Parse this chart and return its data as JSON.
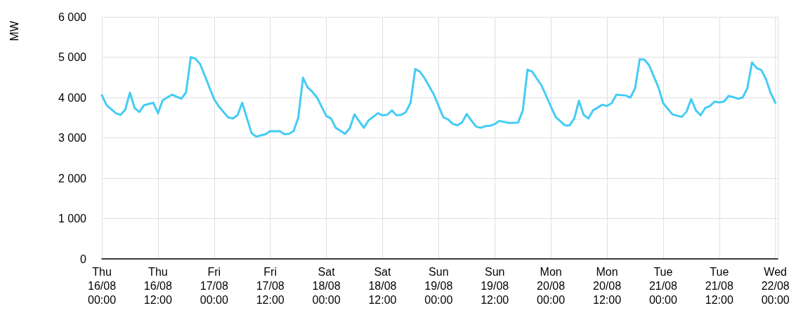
{
  "chart_data": {
    "type": "line",
    "ylabel": "MW",
    "color": "#44ccf5",
    "grid": true,
    "marker": "none",
    "line_style": "solid",
    "x": [
      "--08-16T00:00",
      "--08-16T01:00",
      "--08-16T03:00",
      "--08-16T04:00",
      "--08-16T05:00",
      "--08-16T06:00",
      "--08-16T07:00",
      "--08-16T08:00",
      "--08-16T09:00",
      "--08-16T11:00",
      "--08-16T12:00",
      "--08-16T13:00",
      "--08-16T15:00",
      "--08-16T17:00",
      "--08-16T18:00",
      "--08-16T19:00",
      "--08-16T20:00",
      "--08-16T21:00",
      "--08-17T00:00",
      "--08-17T01:00",
      "--08-17T03:00",
      "--08-17T04:00",
      "--08-17T05:00",
      "--08-17T06:00",
      "--08-17T08:00",
      "--08-17T09:00",
      "--08-17T11:00",
      "--08-17T12:00",
      "--08-17T13:00",
      "--08-17T14:00",
      "--08-17T15:00",
      "--08-17T16:00",
      "--08-17T17:00",
      "--08-17T18:00",
      "--08-17T19:00",
      "--08-17T20:00",
      "--08-17T21:00",
      "--08-17T22:00",
      "--08-18T00:00",
      "--08-18T01:00",
      "--08-18T02:00",
      "--08-18T04:00",
      "--08-18T05:00",
      "--08-18T06:00",
      "--08-18T08:00",
      "--08-18T09:00",
      "--08-18T11:00",
      "--08-18T12:00",
      "--08-18T13:00",
      "--08-18T14:00",
      "--08-18T15:00",
      "--08-18T16:00",
      "--08-18T17:00",
      "--08-18T18:00",
      "--08-18T19:00",
      "--08-18T20:00",
      "--08-18T21:00",
      "--08-18T23:00",
      "--08-19T01:00",
      "--08-19T02:00",
      "--08-19T03:00",
      "--08-19T04:00",
      "--08-19T05:00",
      "--08-19T06:00",
      "--08-19T07:00",
      "--08-19T08:00",
      "--08-19T09:00",
      "--08-19T10:00",
      "--08-19T11:00",
      "--08-19T12:00",
      "--08-19T13:00",
      "--08-19T15:00",
      "--08-19T17:00",
      "--08-19T18:00",
      "--08-19T19:00",
      "--08-19T20:00",
      "--08-19T22:00",
      "--08-20T01:00",
      "--08-20T03:00",
      "--08-20T04:00",
      "--08-20T05:00",
      "--08-20T06:00",
      "--08-20T07:00",
      "--08-20T08:00",
      "--08-20T09:00",
      "--08-20T11:00",
      "--08-20T12:00",
      "--08-20T13:00",
      "--08-20T14:00",
      "--08-20T16:00",
      "--08-20T17:00",
      "--08-20T18:00",
      "--08-20T19:00",
      "--08-20T20:00",
      "--08-20T21:00",
      "--08-20T23:00",
      "--08-21T00:00",
      "--08-21T02:00",
      "--08-21T04:00",
      "--08-21T05:00",
      "--08-21T06:00",
      "--08-21T07:00",
      "--08-21T08:00",
      "--08-21T09:00",
      "--08-21T10:00",
      "--08-21T11:00",
      "--08-21T12:00",
      "--08-21T13:00",
      "--08-21T14:00",
      "--08-21T15:00",
      "--08-21T16:00",
      "--08-21T17:00",
      "--08-21T18:00",
      "--08-21T19:00",
      "--08-21T20:00",
      "--08-21T21:00",
      "--08-21T22:00",
      "--08-21T23:00",
      "--08-22T00:00"
    ],
    "values": [
      4060,
      3810,
      3610,
      3570,
      3700,
      4120,
      3740,
      3640,
      3810,
      3870,
      3610,
      3930,
      4070,
      3970,
      4130,
      5000,
      4960,
      4830,
      3960,
      3780,
      3510,
      3480,
      3560,
      3870,
      3120,
      3030,
      3090,
      3170,
      3160,
      3170,
      3090,
      3100,
      3170,
      3510,
      4490,
      4250,
      4140,
      4000,
      3540,
      3480,
      3250,
      3100,
      3240,
      3580,
      3250,
      3430,
      3610,
      3560,
      3570,
      3680,
      3560,
      3570,
      3640,
      3870,
      4710,
      4640,
      4480,
      4070,
      3510,
      3460,
      3350,
      3310,
      3380,
      3590,
      3430,
      3280,
      3250,
      3290,
      3300,
      3340,
      3420,
      3370,
      3380,
      3680,
      4690,
      4640,
      4300,
      3520,
      3310,
      3310,
      3480,
      3920,
      3570,
      3480,
      3680,
      3820,
      3790,
      3860,
      4070,
      4050,
      4000,
      4230,
      4950,
      4940,
      4800,
      4250,
      3860,
      3580,
      3520,
      3650,
      3960,
      3680,
      3560,
      3740,
      3790,
      3900,
      3880,
      3900,
      4040,
      4010,
      3970,
      4000,
      4230,
      4870,
      4730,
      4680,
      4450,
      4110,
      3870
    ],
    "xlim": [
      "--08-16T00:00",
      "--08-22T00:30"
    ],
    "xticks": [
      {
        "value": "--08-16T00:00",
        "label": "Thu\n16/08\n00:00"
      },
      {
        "value": "--08-16T12:00",
        "label": "Thu\n16/08\n12:00"
      },
      {
        "value": "--08-17T00:00",
        "label": "Fri\n17/08\n00:00"
      },
      {
        "value": "--08-17T12:00",
        "label": "Fri\n17/08\n12:00"
      },
      {
        "value": "--08-18T00:00",
        "label": "Sat\n18/08\n00:00"
      },
      {
        "value": "--08-18T12:00",
        "label": "Sat\n18/08\n12:00"
      },
      {
        "value": "--08-19T00:00",
        "label": "Sun\n19/08\n00:00"
      },
      {
        "value": "--08-19T12:00",
        "label": "Sun\n19/08\n12:00"
      },
      {
        "value": "--08-20T00:00",
        "label": "Mon\n20/08\n00:00"
      },
      {
        "value": "--08-20T12:00",
        "label": "Mon\n20/08\n12:00"
      },
      {
        "value": "--08-21T00:00",
        "label": "Tue\n21/08\n00:00"
      },
      {
        "value": "--08-21T12:00",
        "label": "Tue\n21/08\n12:00"
      },
      {
        "value": "--08-22T00:00",
        "label": "Wed\n22/08\n00:00"
      }
    ],
    "ylim": [
      0,
      6000
    ],
    "yticks": [
      0,
      {
        "value": 1000,
        "label": "1 000"
      },
      {
        "value": 2000,
        "label": "2 000"
      },
      {
        "value": 3000,
        "label": "3 000"
      },
      {
        "value": 4000,
        "label": "4 000"
      },
      {
        "value": 5000,
        "label": "5 000"
      },
      {
        "value": 6000,
        "label": "6 000"
      }
    ]
  }
}
